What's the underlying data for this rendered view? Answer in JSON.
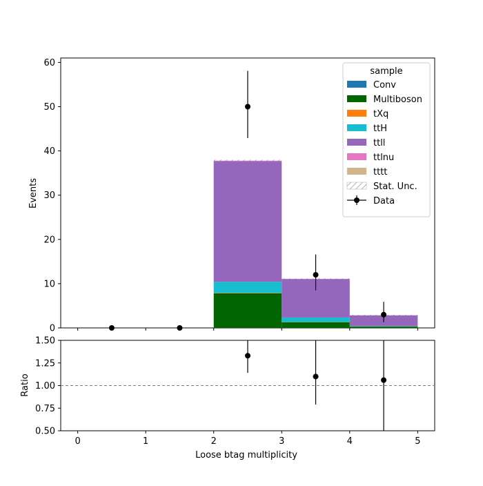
{
  "chart_data": [
    {
      "type": "bar",
      "stacked": true,
      "x_edges": [
        2,
        3,
        4,
        5
      ],
      "categories": [
        "2-3",
        "3-4",
        "4-5"
      ],
      "ylabel": "Events",
      "ylim": [
        0,
        61
      ],
      "yticks": [
        "0",
        "10",
        "20",
        "30",
        "40",
        "50",
        "60"
      ],
      "xlim": [
        -0.25,
        5.25
      ],
      "series": [
        {
          "name": "Conv",
          "color": "#1f77b4",
          "values": [
            0.0,
            0.0,
            0.0
          ]
        },
        {
          "name": "Multiboson",
          "color": "#006400",
          "values": [
            7.8,
            1.3,
            0.3
          ]
        },
        {
          "name": "tXq",
          "color": "#ff7f0e",
          "values": [
            0.1,
            0.05,
            0.02
          ]
        },
        {
          "name": "ttH",
          "color": "#17becf",
          "values": [
            2.5,
            1.0,
            0.1
          ]
        },
        {
          "name": "ttll",
          "color": "#9467bd",
          "values": [
            27.3,
            8.7,
            2.4
          ]
        },
        {
          "name": "ttlnu",
          "color": "#e377c2",
          "values": [
            0.1,
            0.05,
            0.05
          ]
        },
        {
          "name": "tttt",
          "color": "#d2b48c",
          "values": [
            0.0,
            0.0,
            0.0
          ]
        }
      ],
      "stat_unc": {
        "name": "Stat. Unc.",
        "rel": 0.006
      },
      "data": {
        "name": "Data",
        "x": [
          0.5,
          1.5,
          2.5,
          3.5,
          4.5
        ],
        "y": [
          0,
          0,
          50,
          12,
          3
        ],
        "yerr_low": [
          0,
          0,
          7.1,
          3.5,
          1.7
        ],
        "yerr_high": [
          0,
          0,
          8.1,
          4.6,
          2.9
        ]
      },
      "legend": {
        "title": "sample",
        "placement": "top-right"
      }
    },
    {
      "type": "scatter",
      "xlabel": "Loose btag multiplicity",
      "ylabel": "Ratio",
      "ylim": [
        0.5,
        1.5
      ],
      "yticks": [
        "0.50",
        "0.75",
        "1.00",
        "1.25",
        "1.50"
      ],
      "xticks": [
        "0",
        "1",
        "2",
        "3",
        "4",
        "5"
      ],
      "reference_line": 1.0,
      "x": [
        2.5,
        3.5,
        4.5
      ],
      "y": [
        1.33,
        1.1,
        1.06
      ],
      "yerr_low": [
        0.19,
        0.31,
        0.6
      ],
      "yerr_high": [
        0.22,
        0.41,
        1.0
      ]
    }
  ]
}
